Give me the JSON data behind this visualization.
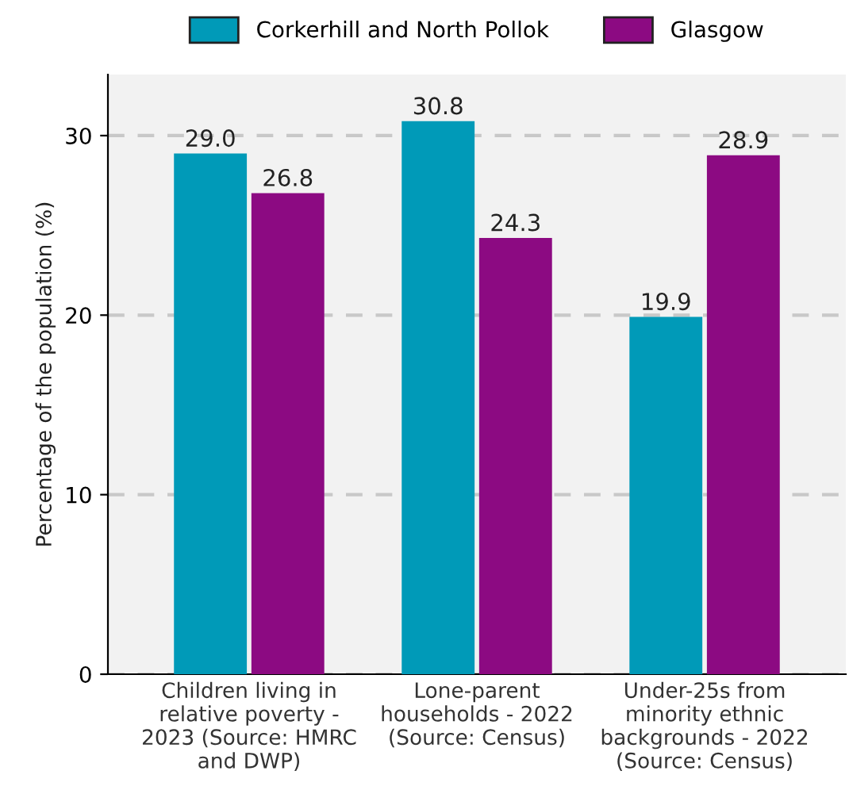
{
  "chart_data": {
    "type": "bar",
    "ylabel": "Percentage of the population (%)",
    "categories": [
      "Children living in\nrelative poverty -\n2023 (Source: HMRC\nand DWP)",
      "Lone-parent\nhouseholds - 2022\n(Source: Census)",
      "Under-25s from\nminority ethnic\nbackgrounds - 2022\n(Source: Census)"
    ],
    "series": [
      {
        "name": "Corkerhill and North Pollok",
        "color": "#009ab8",
        "values": [
          29.0,
          30.8,
          19.9
        ],
        "value_labels": [
          "29.0",
          "30.8",
          "19.9"
        ]
      },
      {
        "name": "Glasgow",
        "color": "#8c0a82",
        "values": [
          26.8,
          24.3,
          28.9
        ],
        "value_labels": [
          "26.8",
          "24.3",
          "28.9"
        ]
      }
    ],
    "ylim": [
      0,
      33.4
    ],
    "yticks": [
      0,
      10,
      20,
      30
    ],
    "grid": "y",
    "legend": "top"
  }
}
